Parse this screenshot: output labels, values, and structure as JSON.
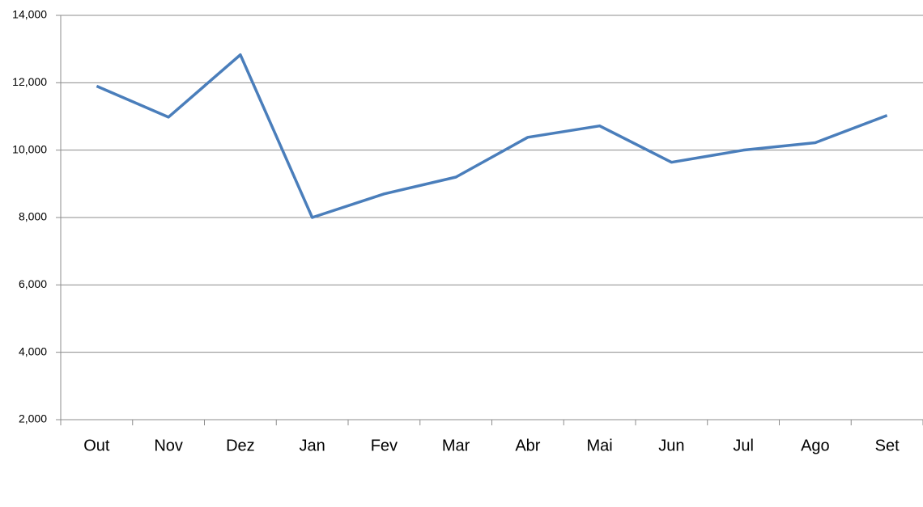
{
  "chart_data": {
    "type": "line",
    "categories": [
      "Out",
      "Nov",
      "Dez",
      "Jan",
      "Fev",
      "Mar",
      "Abr",
      "Mai",
      "Jun",
      "Jul",
      "Ago",
      "Set"
    ],
    "series": [
      {
        "color": "#4a7ebb",
        "values": [
          11900,
          10980,
          12830,
          8000,
          8700,
          9200,
          10380,
          10720,
          9640,
          10000,
          10220,
          11030
        ]
      }
    ],
    "ylim": [
      2000,
      14000
    ],
    "yticks": [
      {
        "value": 2000,
        "label": "2,000"
      },
      {
        "value": 4000,
        "label": "4,000"
      },
      {
        "value": 6000,
        "label": "6,000"
      },
      {
        "value": 8000,
        "label": "8,000"
      },
      {
        "value": 10000,
        "label": "10,000"
      },
      {
        "value": 12000,
        "label": "12,000"
      },
      {
        "value": 14000,
        "label": "14,000"
      }
    ],
    "grid": true
  }
}
